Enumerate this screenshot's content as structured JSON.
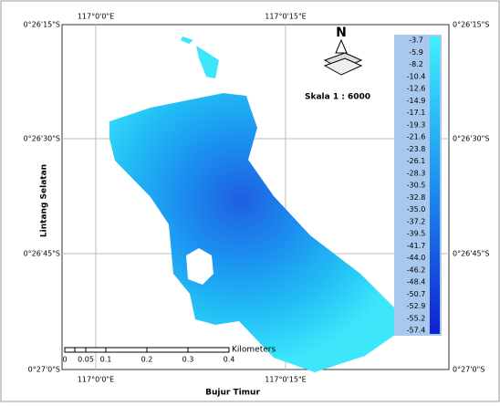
{
  "north": "N",
  "scale_text": "Skala 1 : 6000",
  "x_axis_title": "Bujur Timur",
  "y_axis_title": "Lintang Selatan",
  "top_labels": [
    "117°0'0\"E",
    "117°0'15\"E"
  ],
  "bottom_labels": [
    "117°0'0\"E",
    "117°0'15\"E"
  ],
  "left_labels": [
    "0°26'15\"S",
    "0°26'30\"S",
    "0°26'45\"S",
    "0°27'0\"S"
  ],
  "right_labels": [
    "0°26'15\"S",
    "0°26'30\"S",
    "0°26'45\"S",
    "0°27'0\"S"
  ],
  "legend": [
    "-3.7",
    "-5.9",
    "-8.2",
    "-10.4",
    "-12.6",
    "-14.9",
    "-17.1",
    "-19.3",
    "-21.6",
    "-23.8",
    "-26.1",
    "-28.3",
    "-30.5",
    "-32.8",
    "-35.0",
    "-37.2",
    "-39.5",
    "-41.7",
    "-44.0",
    "-46.2",
    "-48.4",
    "-50.7",
    "-52.9",
    "-55.2",
    "-57.4"
  ],
  "scale_bar": {
    "labels": [
      "0",
      "0.05",
      "0.1",
      "0.2",
      "0.3",
      "0.4"
    ],
    "unit": "Kilometers"
  }
}
